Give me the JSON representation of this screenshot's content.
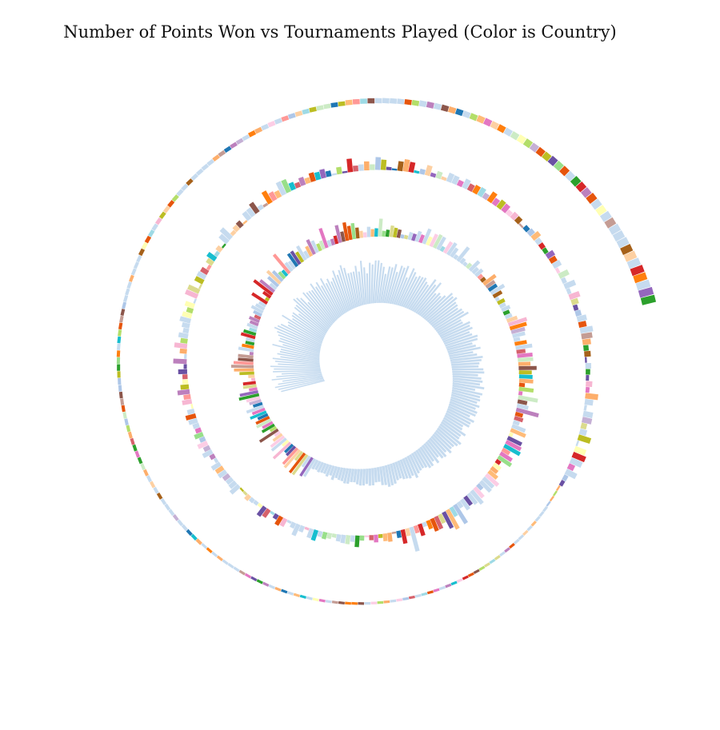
{
  "chart_data": {
    "type": "spiral-bar",
    "title": "Number of Points Won vs Tournaments Played (Color is Country)",
    "value_measure": "Number of Points Won",
    "order_measure": "Tournaments Played",
    "color_field": "Country",
    "legend": "none",
    "axes": "none",
    "grid": false,
    "palette": [
      "#c6dbef",
      "#aec7e8",
      "#1f77b4",
      "#ff7f0e",
      "#ffbb78",
      "#2ca02c",
      "#98df8a",
      "#d62728",
      "#ff9896",
      "#9467bd",
      "#c5b0d5",
      "#8c564b",
      "#c49c94",
      "#e377c2",
      "#f7b6d2",
      "#bcbd22",
      "#dbdb8d",
      "#17becf",
      "#9edae5",
      "#fdd0a2",
      "#fdae6b",
      "#6a51a3",
      "#e6550d",
      "#d6616b",
      "#ffffb3",
      "#b3de69",
      "#bc80bd",
      "#fccde5",
      "#ccebc5",
      "#a6611a"
    ],
    "primary_color": "#c6dbef",
    "value_range": [
      0,
      100
    ],
    "segments": [
      {
        "segment": 1,
        "color_mode": "single-country",
        "values": [
          70,
          73,
          77,
          71,
          63,
          79,
          71,
          62,
          75,
          73,
          78,
          66,
          70,
          74,
          62,
          67,
          63,
          62,
          76,
          60,
          67,
          66,
          70,
          73,
          79,
          75,
          71,
          60,
          62,
          75,
          58,
          61,
          62,
          53,
          64,
          64,
          73,
          70,
          65,
          52,
          68,
          64,
          63,
          61,
          70,
          61,
          66,
          57,
          67,
          56,
          61,
          54,
          58,
          68,
          59,
          65,
          71,
          65,
          55,
          55,
          55,
          63,
          53,
          69,
          58,
          48,
          64,
          61,
          67,
          67,
          63,
          57,
          46,
          58,
          57,
          63,
          51,
          62,
          60,
          64,
          46,
          63,
          58,
          52,
          55,
          55,
          56,
          51,
          48,
          61,
          54,
          61,
          43,
          47,
          44,
          49,
          59,
          56,
          59,
          53,
          52,
          49,
          53,
          53,
          58,
          42,
          42,
          52,
          49,
          51,
          44,
          46,
          53,
          51,
          41,
          45,
          51,
          38,
          43,
          51,
          48,
          44,
          42,
          49,
          50,
          40,
          45,
          47,
          43,
          50,
          36,
          48,
          45,
          46,
          42,
          47,
          42,
          46,
          45,
          37,
          46,
          42,
          42,
          33,
          34,
          43,
          37,
          37,
          44,
          41,
          37,
          36,
          40,
          33,
          38,
          36,
          30,
          37,
          30,
          35,
          35,
          31,
          29,
          30,
          32,
          37,
          31,
          33,
          31,
          30,
          27,
          28,
          32,
          33,
          34,
          30,
          29,
          23,
          23,
          27,
          27,
          24,
          26,
          26,
          24,
          21,
          21,
          24,
          24,
          21,
          20,
          18,
          22,
          16,
          19,
          16,
          16,
          17,
          15,
          16
        ]
      },
      {
        "segment": 2,
        "color_mode": "mixed-country",
        "values": [
          32,
          34,
          20,
          38,
          38,
          17,
          36,
          33,
          19,
          17,
          36,
          12,
          29,
          26,
          17,
          10,
          34,
          11,
          22,
          18,
          25,
          23,
          17,
          27,
          21,
          28,
          15,
          19,
          22,
          32,
          29,
          13,
          21,
          20,
          6,
          10,
          23,
          31,
          35,
          31,
          24,
          24,
          6,
          24,
          19,
          14,
          14,
          23,
          20,
          12,
          17,
          14,
          17,
          10,
          14,
          20,
          15,
          12,
          28,
          6,
          14,
          36,
          28,
          12,
          21,
          28,
          21,
          13,
          11,
          38,
          16,
          14,
          24,
          24,
          18,
          25,
          12,
          17,
          25,
          20,
          12,
          14,
          32,
          10,
          10,
          13,
          28,
          16,
          29,
          22,
          25,
          17,
          11,
          8,
          16,
          12,
          13,
          28,
          9,
          11,
          18,
          15,
          13,
          6,
          6,
          12,
          11,
          17,
          13,
          25,
          14,
          21,
          23,
          22,
          8,
          20,
          22,
          16,
          7,
          27,
          9,
          6,
          9,
          20,
          11,
          14,
          8,
          8,
          23,
          16,
          15,
          24,
          15,
          6,
          12,
          10,
          14,
          10,
          11,
          17,
          30,
          27,
          22,
          20,
          10,
          19,
          26,
          14,
          24,
          24,
          19,
          28,
          20,
          21,
          22,
          9,
          23,
          6,
          31,
          15,
          18,
          36,
          12,
          14,
          10,
          22,
          25,
          6,
          24,
          26,
          28,
          13,
          21,
          24,
          8,
          13,
          12,
          17,
          25,
          21,
          22,
          10,
          20,
          26,
          20,
          16,
          19,
          10,
          34,
          16,
          34,
          28,
          15,
          21,
          21,
          14,
          7,
          19,
          12,
          39
        ]
      },
      {
        "segment": 3,
        "color_mode": "mixed-country",
        "values": [
          12,
          22,
          11,
          3,
          14,
          12,
          6,
          12,
          8,
          3,
          8,
          18,
          10,
          14,
          13,
          11,
          6,
          9,
          11,
          9,
          17,
          15,
          4,
          10,
          19,
          9,
          4,
          13,
          15,
          8,
          4,
          14,
          17,
          5,
          6,
          7,
          9,
          4,
          3,
          17,
          12,
          11,
          11,
          14,
          13,
          15,
          5,
          8,
          16,
          10,
          16,
          9,
          14,
          9,
          10,
          14,
          16,
          11,
          3,
          15,
          11,
          19,
          13,
          9,
          8,
          14,
          5,
          21,
          4,
          11,
          20,
          11,
          15,
          9,
          12,
          17,
          15,
          10,
          15,
          3,
          20,
          19,
          3,
          14,
          14,
          12,
          5,
          11,
          15,
          6,
          9,
          3,
          16,
          21,
          6,
          9,
          10,
          3,
          14,
          14,
          18,
          7,
          4,
          21,
          14,
          11,
          22,
          21,
          12,
          8,
          13,
          9,
          14,
          12,
          14,
          9,
          3,
          11,
          3,
          21,
          9,
          10,
          14,
          9,
          20,
          16,
          5,
          3,
          15,
          19,
          16,
          4,
          8,
          16,
          6,
          11,
          5,
          14,
          13,
          9,
          15,
          11,
          13,
          14,
          9,
          17,
          11,
          14,
          13,
          8,
          11,
          10,
          3,
          8,
          10,
          14,
          9,
          8,
          7,
          13,
          11,
          13,
          5,
          16,
          7,
          18,
          6,
          17,
          11,
          7,
          9,
          15,
          12,
          20,
          17,
          13,
          8,
          10,
          3,
          9,
          7,
          5,
          10,
          6,
          20,
          13,
          4,
          15,
          15,
          9,
          11,
          20,
          3,
          18,
          21,
          19,
          10,
          18,
          7,
          6
        ]
      },
      {
        "segment": 4,
        "color_mode": "mixed-country",
        "values": [
          3,
          3,
          3,
          3,
          4,
          4,
          4,
          4,
          4,
          4,
          4,
          4,
          4,
          4,
          4,
          4,
          4,
          4,
          4,
          4,
          4,
          4,
          4,
          4,
          4,
          4,
          4,
          4,
          4,
          4,
          4,
          4,
          4,
          4,
          4,
          4,
          4,
          4,
          4,
          4,
          4,
          4,
          4,
          4,
          4,
          4,
          4,
          4,
          4,
          4,
          4,
          4,
          4,
          4,
          4,
          4,
          4,
          4,
          4,
          4,
          4,
          4,
          4,
          4,
          4,
          5,
          5,
          5,
          5,
          5,
          5,
          5,
          5,
          5,
          5,
          5,
          5,
          5,
          5,
          5,
          5,
          5,
          5,
          5,
          5,
          5,
          5,
          5,
          5,
          5,
          5,
          5,
          5,
          5,
          5,
          5,
          5,
          5,
          5,
          5,
          5,
          5,
          5,
          5,
          5,
          5,
          5,
          5,
          5,
          5,
          5,
          6,
          6,
          6,
          6,
          6,
          6,
          6,
          6,
          6,
          6,
          6,
          6,
          6,
          6,
          6,
          6,
          6,
          6,
          6,
          6,
          6,
          6,
          6,
          7,
          7,
          7,
          7,
          7,
          7,
          7,
          7,
          7,
          7,
          7,
          7,
          7,
          7,
          8,
          8,
          8,
          8,
          8,
          8,
          8,
          8,
          8,
          8,
          9,
          9,
          9,
          9,
          9,
          9,
          9,
          9,
          10,
          10,
          10,
          10,
          10,
          10,
          11,
          11,
          11,
          11,
          11,
          12,
          12,
          12,
          12,
          13,
          13,
          13,
          14,
          14,
          14,
          15,
          15,
          16,
          16,
          17,
          17,
          18,
          19,
          20,
          20,
          21,
          22,
          22
        ]
      }
    ]
  }
}
